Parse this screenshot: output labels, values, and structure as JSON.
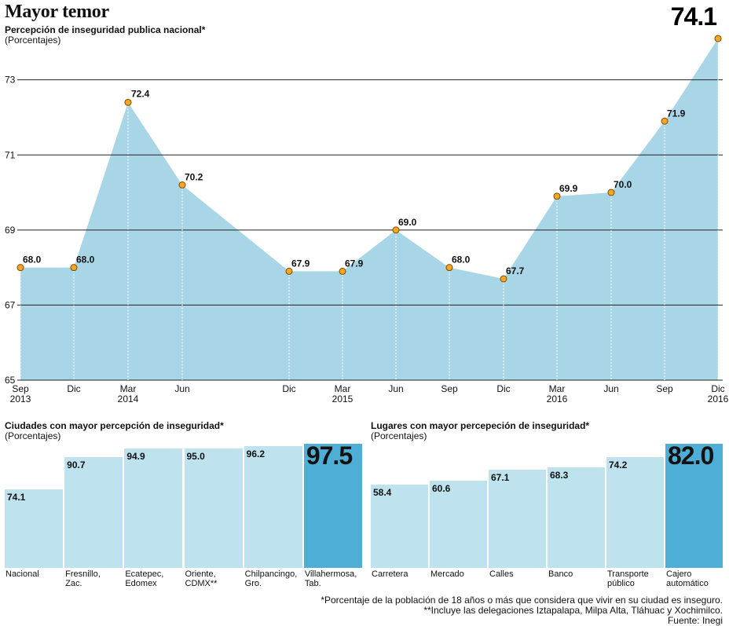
{
  "header": {
    "title": "Mayor temor",
    "subtitle": "Percepción de inseguridad publica nacional*",
    "unit": "(Porcentajes)"
  },
  "colors": {
    "fill": "#a9d6e6",
    "highlight": "#4eaed6",
    "bar": "#bfe3ee",
    "point": "#f5a623"
  },
  "chart_data": [
    {
      "type": "area",
      "title": "Percepción de inseguridad publica nacional*",
      "ylabel": "(Porcentajes)",
      "ylim": [
        65,
        74.5
      ],
      "yticks": [
        65,
        67,
        69,
        71,
        73
      ],
      "grid": true,
      "x": [
        "Sep 2013",
        "Dic",
        "Mar 2014",
        "Jun",
        "Dic",
        "Mar 2015",
        "Jun",
        "Sep",
        "Dic",
        "Mar 2016",
        "Jun",
        "Sep",
        "Dic 2016"
      ],
      "xlabels_top": [
        "Sep",
        "Dic",
        "Mar",
        "Jun",
        "Dic",
        "Mar",
        "Jun",
        "Sep",
        "Dic",
        "Mar",
        "Jun",
        "Sep",
        "Dic"
      ],
      "xlabels_bottom": [
        "2013",
        "",
        "2014",
        "",
        "",
        "2015",
        "",
        "",
        "",
        "2016",
        "",
        "",
        "2016"
      ],
      "values": [
        68.0,
        68.0,
        72.4,
        70.2,
        67.9,
        67.9,
        69.0,
        68.0,
        67.7,
        69.9,
        70.0,
        71.9,
        74.1
      ],
      "labels": [
        "68.0",
        "68.0",
        "72.4",
        "70.2",
        "67.9",
        "67.9",
        "69.0",
        "68.0",
        "67.7",
        "69.9",
        "70.0",
        "71.9",
        "74.1"
      ]
    },
    {
      "type": "bar",
      "title": "Ciudades con mayor percepción de inseguridad*",
      "ylabel": "(Porcentajes)",
      "categories": [
        "Nacional",
        "Fresnillo,\nZac.",
        "Ecatepec,\nEdomex",
        "Oriente,\nCDMX**",
        "Chilpancingo,\nGro.",
        "Villahermosa,\nTab."
      ],
      "values": [
        74.1,
        90.7,
        94.9,
        95.0,
        96.2,
        97.5
      ],
      "labels": [
        "74.1",
        "90.7",
        "94.9",
        "95.0",
        "96.2",
        "97.5"
      ]
    },
    {
      "type": "bar",
      "title": "Lugares con mayor percepeción de inseguridad*",
      "ylabel": "(Porcentajes)",
      "categories": [
        "Carretera",
        "Mercado",
        "Calles",
        "Banco",
        "Transporte\npúblico",
        "Cajero\nautomático"
      ],
      "values": [
        58.4,
        60.6,
        67.1,
        68.3,
        74.2,
        82.0
      ],
      "labels": [
        "58.4",
        "60.6",
        "67.1",
        "68.3",
        "74.2",
        "82.0"
      ]
    }
  ],
  "footnotes": [
    "*Porcentaje de la población de 18 años o más que considera que vivir en su ciudad es inseguro.",
    "**Incluye las delegaciones Iztapalapa, Milpa Alta, Tláhuac y Xochimilco.",
    "Fuente: Inegi"
  ]
}
